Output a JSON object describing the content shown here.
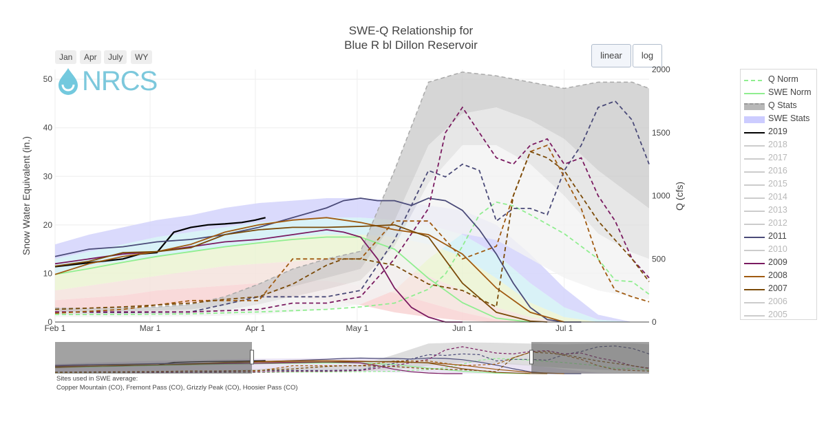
{
  "title_line1": "SWE-Q Relationship for",
  "title_line2": "Blue R bl Dillon Reservoir",
  "range_buttons": [
    "Jan",
    "Apr",
    "July",
    "WY"
  ],
  "scale_buttons": {
    "linear": "linear",
    "log": "log",
    "active": "linear"
  },
  "logo_text": "NRCS",
  "sites_note_heading": "Sites used in SWE average:",
  "sites_note_list": "Copper Mountain (CO), Fremont Pass (CO), Grizzly Peak (CO), Hoosier Pass (CO)",
  "colors": {
    "q_norm": "#90ee90",
    "swe_norm": "#90ee90",
    "q_stats": "#c8c8c8",
    "swe_stats": "#ccccff"
  },
  "legend": [
    {
      "label": "Q Norm",
      "color": "#90ee90",
      "style": "dash",
      "visible": true
    },
    {
      "label": "SWE Norm",
      "color": "#90ee90",
      "style": "solid",
      "visible": true
    },
    {
      "label": "Q Stats",
      "color": "#b8b8b8",
      "style": "band-dash",
      "visible": true
    },
    {
      "label": "SWE Stats",
      "color": "#ccccff",
      "style": "band",
      "visible": true
    },
    {
      "label": "2019",
      "color": "#000000",
      "style": "solid",
      "visible": true
    },
    {
      "label": "2018",
      "color": "#9a9aa2",
      "style": "solid",
      "visible": false
    },
    {
      "label": "2017",
      "color": "#b8a8b8",
      "style": "solid",
      "visible": false
    },
    {
      "label": "2016",
      "color": "#a8a8b8",
      "style": "solid",
      "visible": false
    },
    {
      "label": "2015",
      "color": "#d8d8b0",
      "style": "solid",
      "visible": false
    },
    {
      "label": "2014",
      "color": "#d0a8c0",
      "style": "solid",
      "visible": false
    },
    {
      "label": "2013",
      "color": "#c8b090",
      "style": "solid",
      "visible": false
    },
    {
      "label": "2012",
      "color": "#d8b0c0",
      "style": "solid",
      "visible": false
    },
    {
      "label": "2011",
      "color": "#4a4a78",
      "style": "solid",
      "visible": true
    },
    {
      "label": "2010",
      "color": "#c0c0c0",
      "style": "solid",
      "visible": false
    },
    {
      "label": "2009",
      "color": "#7a1a60",
      "style": "solid",
      "visible": true
    },
    {
      "label": "2008",
      "color": "#a05a10",
      "style": "solid",
      "visible": true
    },
    {
      "label": "2007",
      "color": "#7a4a08",
      "style": "solid",
      "visible": true
    },
    {
      "label": "2006",
      "color": "#9a90b8",
      "style": "solid",
      "visible": false
    },
    {
      "label": "2005",
      "color": "#d0b0c0",
      "style": "solid",
      "visible": false
    }
  ],
  "chart_data": {
    "type": "line",
    "title": "SWE-Q Relationship for Blue R bl Dillon Reservoir",
    "x_axis": {
      "start": "Feb 1",
      "end": "Jul 26",
      "tick_labels": [
        "Feb  1",
        "Mar  1",
        "Apr  1",
        "May  1",
        "Jun  1",
        "Jul  1"
      ],
      "tick_days": [
        0,
        28,
        59,
        89,
        120,
        150
      ],
      "max_day": 175
    },
    "y_left": {
      "label": "Snow Water Equivalent (in.)",
      "range": [
        0,
        52
      ],
      "ticks": [
        0,
        10,
        20,
        30,
        40,
        50
      ]
    },
    "y_right": {
      "label": "Q (cfs)",
      "range": [
        0,
        2000
      ],
      "ticks": [
        0,
        500,
        1000,
        1500,
        2000
      ]
    },
    "grid": true,
    "legend_position": "right",
    "x_days": [
      0,
      10,
      20,
      30,
      40,
      50,
      60,
      70,
      80,
      90,
      100,
      110,
      120,
      130,
      140,
      150,
      160,
      170,
      175
    ],
    "swe_stats_band": {
      "max": [
        16,
        18,
        19.5,
        21,
        22,
        23.5,
        24.5,
        25,
        25.5,
        25.5,
        25,
        24,
        23,
        20,
        14,
        7,
        1.5,
        0,
        0
      ],
      "p90": [
        13,
        14.5,
        16,
        17.5,
        18.5,
        19.5,
        20.5,
        21,
        21.5,
        21.5,
        21,
        20,
        18,
        14,
        8,
        3,
        0.5,
        0,
        0
      ],
      "p70": [
        10,
        11.5,
        12.5,
        13.5,
        14.5,
        15.5,
        16.5,
        17.5,
        18,
        18,
        17.5,
        16,
        13.5,
        9,
        4,
        1,
        0,
        0,
        0
      ],
      "p30": [
        6.5,
        7.5,
        8.5,
        9.5,
        10.5,
        11.5,
        12,
        12.5,
        13,
        12.5,
        11.5,
        9.5,
        6.5,
        3,
        1,
        0,
        0,
        0,
        0
      ],
      "p10": [
        4.5,
        5,
        5.5,
        6.5,
        7,
        7.5,
        8,
        8.5,
        8.5,
        7.5,
        6,
        4,
        2,
        0.5,
        0,
        0,
        0,
        0,
        0
      ],
      "min": [
        2,
        2.5,
        3,
        3.5,
        4,
        4.5,
        5,
        5,
        4.5,
        3.5,
        2,
        1,
        0.3,
        0,
        0,
        0,
        0,
        0,
        0
      ]
    },
    "q_stats_band": {
      "max": [
        110,
        110,
        115,
        120,
        140,
        200,
        300,
        420,
        500,
        560,
        1200,
        1900,
        1980,
        1950,
        1900,
        1850,
        1900,
        1900,
        1850
      ],
      "p75": [
        80,
        80,
        85,
        90,
        100,
        130,
        200,
        280,
        350,
        420,
        800,
        1400,
        1650,
        1700,
        1600,
        1450,
        1200,
        1000,
        900
      ],
      "p50": [
        60,
        60,
        62,
        65,
        70,
        90,
        140,
        200,
        260,
        330,
        600,
        1100,
        1400,
        1400,
        1250,
        1000,
        700,
        550,
        500
      ],
      "min": [
        40,
        40,
        40,
        42,
        45,
        50,
        60,
        80,
        100,
        140,
        250,
        500,
        700,
        650,
        500,
        350,
        250,
        200,
        180
      ]
    },
    "series": [
      {
        "name": "SWE Norm",
        "axis": "left",
        "dash": false,
        "color": "#90ee90",
        "x": [
          0,
          10,
          20,
          30,
          40,
          50,
          60,
          70,
          80,
          90,
          100,
          110,
          120,
          130,
          140
        ],
        "y": [
          9.8,
          11,
          12.3,
          13.5,
          14.5,
          15.5,
          16.3,
          17,
          17.5,
          17.5,
          15,
          9,
          4,
          0.8,
          0
        ]
      },
      {
        "name": "Q Norm",
        "axis": "right",
        "dash": true,
        "color": "#90ee90",
        "x": [
          0,
          20,
          40,
          60,
          80,
          90,
          100,
          110,
          115,
          120,
          125,
          130,
          135,
          140,
          150,
          160,
          165,
          170,
          175
        ],
        "y": [
          60,
          60,
          65,
          80,
          100,
          120,
          150,
          260,
          380,
          600,
          850,
          950,
          920,
          850,
          700,
          500,
          330,
          320,
          220
        ]
      },
      {
        "name": "2019",
        "axis": "left",
        "dash": false,
        "color": "#000000",
        "x": [
          0,
          10,
          20,
          25,
          30,
          35,
          40,
          45,
          50,
          55,
          59,
          62
        ],
        "y": [
          11.4,
          12.2,
          13,
          14,
          14.3,
          18.5,
          19.5,
          20,
          20.2,
          20.5,
          21,
          21.5
        ]
      },
      {
        "name": "2011",
        "axis": "left",
        "dash": false,
        "color": "#4a4a78",
        "x": [
          0,
          10,
          20,
          30,
          40,
          50,
          60,
          70,
          80,
          85,
          90,
          95,
          100,
          105,
          110,
          115,
          120,
          125,
          130,
          135,
          140,
          145,
          150,
          155
        ],
        "y": [
          13.5,
          15,
          15.5,
          16.5,
          17,
          18,
          19.5,
          21.5,
          23.5,
          25,
          25.5,
          25,
          25,
          24,
          25.5,
          25,
          23,
          19,
          14,
          8,
          3,
          0.5,
          0,
          0
        ]
      },
      {
        "name": "2011 Q",
        "axis": "right",
        "dash": true,
        "color": "#4a4a78",
        "x": [
          0,
          20,
          40,
          60,
          80,
          90,
          100,
          110,
          115,
          120,
          125,
          130,
          135,
          140,
          145,
          150,
          155,
          160,
          165,
          170,
          175
        ],
        "y": [
          80,
          75,
          80,
          200,
          200,
          250,
          650,
          1200,
          1150,
          1250,
          1200,
          800,
          900,
          900,
          850,
          1200,
          1400,
          1700,
          1750,
          1600,
          1250
        ]
      },
      {
        "name": "2009",
        "axis": "left",
        "dash": false,
        "color": "#7a1a60",
        "x": [
          0,
          10,
          20,
          30,
          40,
          50,
          60,
          70,
          80,
          85,
          90,
          95,
          100,
          105,
          110,
          115,
          120
        ],
        "y": [
          12,
          13,
          14,
          14.5,
          15.5,
          16.5,
          17,
          18,
          19,
          18.5,
          17.5,
          13,
          7,
          3,
          1,
          0,
          0
        ]
      },
      {
        "name": "2009 Q",
        "axis": "right",
        "dash": true,
        "color": "#7a1a60",
        "x": [
          0,
          20,
          40,
          60,
          70,
          80,
          90,
          100,
          110,
          115,
          120,
          125,
          130,
          135,
          140,
          145,
          150,
          155,
          160,
          165,
          170,
          175
        ],
        "y": [
          80,
          80,
          80,
          100,
          150,
          150,
          200,
          500,
          900,
          1500,
          1700,
          1500,
          1300,
          1250,
          1400,
          1450,
          1250,
          1300,
          1000,
          800,
          500,
          350
        ]
      },
      {
        "name": "2008",
        "axis": "left",
        "dash": false,
        "color": "#a05a10",
        "x": [
          0,
          10,
          20,
          30,
          40,
          50,
          60,
          70,
          80,
          90,
          100,
          110,
          120,
          130,
          140,
          150
        ],
        "y": [
          9.8,
          12,
          13.5,
          14.5,
          16,
          18.5,
          20,
          21,
          21.5,
          20.5,
          19,
          18,
          14,
          7,
          2,
          0
        ]
      },
      {
        "name": "2008 Q",
        "axis": "right",
        "dash": true,
        "color": "#a05a10",
        "x": [
          0,
          20,
          40,
          60,
          70,
          80,
          90,
          100,
          110,
          120,
          130,
          135,
          140,
          145,
          150,
          155,
          160,
          165,
          170,
          175
        ],
        "y": [
          70,
          100,
          170,
          170,
          500,
          500,
          500,
          800,
          800,
          500,
          600,
          1000,
          1350,
          1400,
          1150,
          900,
          500,
          250,
          200,
          160
        ]
      },
      {
        "name": "2007",
        "axis": "left",
        "dash": false,
        "color": "#7a4a08",
        "x": [
          0,
          10,
          20,
          30,
          40,
          50,
          60,
          70,
          80,
          90,
          100,
          110,
          120,
          130,
          140,
          145
        ],
        "y": [
          11.5,
          12.5,
          14.3,
          14.5,
          15.3,
          18,
          19,
          19.5,
          19.5,
          19.7,
          20,
          17.5,
          8,
          2,
          0.2,
          0
        ]
      },
      {
        "name": "2007 Q",
        "axis": "right",
        "dash": true,
        "color": "#7a4a08",
        "x": [
          0,
          20,
          40,
          50,
          60,
          70,
          80,
          85,
          90,
          100,
          110,
          120,
          130,
          135,
          140,
          145,
          150,
          160,
          170,
          175
        ],
        "y": [
          100,
          120,
          150,
          180,
          200,
          300,
          450,
          500,
          500,
          450,
          300,
          250,
          120,
          1000,
          1350,
          1300,
          1200,
          800,
          500,
          320
        ]
      }
    ]
  }
}
